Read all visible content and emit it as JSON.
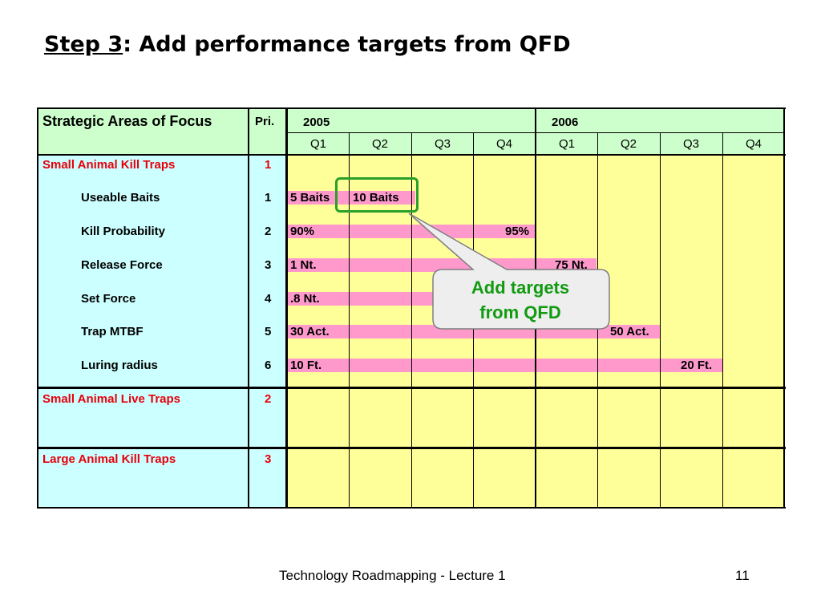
{
  "slide": {
    "title_step": "Step 3",
    "title_rest": ":  Add performance targets from QFD",
    "footer": "Technology Roadmapping - Lecture 1",
    "page_number": "11"
  },
  "table": {
    "header": {
      "areas": "Strategic Areas of Focus",
      "priority": "Pri.",
      "years": [
        "2005",
        "2006"
      ],
      "quarters": [
        "Q1",
        "Q2",
        "Q3",
        "Q4",
        "Q1",
        "Q2",
        "Q3",
        "Q4"
      ]
    },
    "sections": [
      {
        "label": "Small Animal Kill Traps",
        "priority": "1",
        "metrics": [
          {
            "label": "Useable Baits",
            "priority": "1",
            "targets": [
              "5 Baits",
              "10 Baits"
            ]
          },
          {
            "label": "Kill Probability",
            "priority": "2",
            "targets": [
              "90%",
              "95%"
            ]
          },
          {
            "label": "Release Force",
            "priority": "3",
            "targets": [
              "1 Nt.",
              "75 Nt."
            ]
          },
          {
            "label": "Set Force",
            "priority": "4",
            "targets": [
              ".8 Nt."
            ]
          },
          {
            "label": "Trap MTBF",
            "priority": "5",
            "targets": [
              "30 Act.",
              "50 Act."
            ]
          },
          {
            "label": "Luring radius",
            "priority": "6",
            "targets": [
              "10 Ft.",
              "20 Ft."
            ]
          }
        ]
      },
      {
        "label": "Small Animal Live Traps",
        "priority": "2",
        "metrics": []
      },
      {
        "label": "Large Animal Kill Traps",
        "priority": "3",
        "metrics": []
      }
    ]
  },
  "callout": {
    "line1": "Add targets",
    "line2": "from QFD"
  },
  "colors": {
    "area_column_bg": "#ccffff",
    "header_bg": "#ccffcc",
    "grid_bg": "#ffff99",
    "bar": "#ff99cc",
    "section_text": "#e8000b",
    "highlight": "#2aa02a",
    "callout_text": "#119b11"
  }
}
